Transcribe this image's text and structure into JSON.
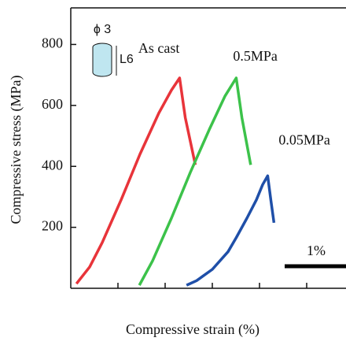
{
  "chart_data": {
    "type": "line",
    "y_label": "Compressive stress (MPa)",
    "x_label": "Compressive strain (%)",
    "ylim": [
      0,
      920
    ],
    "yticks": [
      200,
      400,
      600,
      800
    ],
    "xlim": [
      0,
      4.375
    ],
    "xticks": [
      0.75,
      1.5,
      2.25,
      3,
      3.75
    ],
    "annotations": [
      "ϕ 3",
      "L6"
    ],
    "scale_bar": {
      "value": 1,
      "label": "1%"
    },
    "series": [
      {
        "name": "As cast",
        "color": "#e8343a",
        "x": [
          0.09,
          0.3,
          0.5,
          0.8,
          1.1,
          1.4,
          1.6,
          1.73,
          1.82,
          1.98
        ],
        "values": [
          15,
          70,
          150,
          290,
          440,
          575,
          650,
          690,
          560,
          405
        ]
      },
      {
        "name": "0.5MPa",
        "color": "#3cc24a",
        "x": [
          1.09,
          1.3,
          1.6,
          1.9,
          2.2,
          2.45,
          2.63,
          2.72,
          2.86
        ],
        "values": [
          10,
          90,
          230,
          380,
          520,
          630,
          690,
          560,
          405
        ]
      },
      {
        "name": "0.05MPa",
        "color": "#1f4fa8",
        "x": [
          1.84,
          2.0,
          2.25,
          2.5,
          2.63,
          2.8,
          2.95,
          3.05,
          3.13,
          3.18,
          3.23
        ],
        "values": [
          10,
          25,
          62,
          120,
          166,
          230,
          290,
          340,
          369,
          290,
          215
        ]
      }
    ]
  }
}
